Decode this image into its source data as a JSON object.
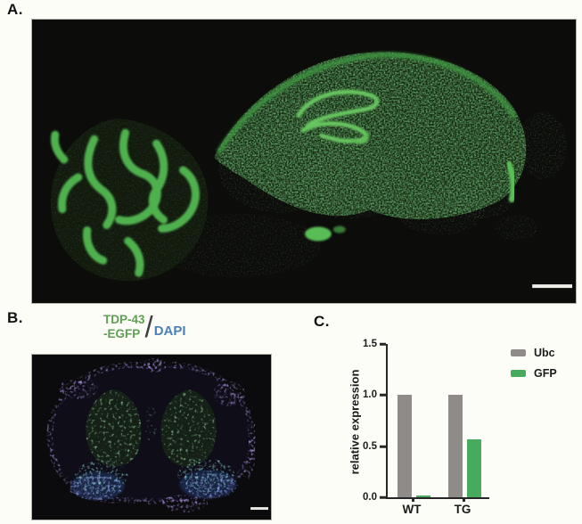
{
  "panels": {
    "a": {
      "label": "A."
    },
    "b": {
      "label": "B.",
      "title": {
        "line1": "TDP-43",
        "line2": "-EGFP",
        "separator": "/",
        "dapi": "DAPI"
      },
      "colors": {
        "egfp_text": "#5f9e53",
        "dapi_text": "#4b80ba"
      }
    },
    "c": {
      "label": "C."
    }
  },
  "chart_data": {
    "type": "bar",
    "title": "",
    "categories": [
      "WT",
      "TG"
    ],
    "series": [
      {
        "name": "Ubc",
        "color": "#8e8b88",
        "values": [
          1.0,
          1.0
        ]
      },
      {
        "name": "GFP",
        "color": "#46ab5c",
        "values": [
          0.02,
          0.57
        ]
      }
    ],
    "ylabel": "relative expression",
    "xlabel": "",
    "ylim": [
      0,
      1.5
    ],
    "yticks": [
      "0.0",
      "0.5",
      "1.0",
      "1.5"
    ],
    "legend_position": "right",
    "grid": false
  }
}
